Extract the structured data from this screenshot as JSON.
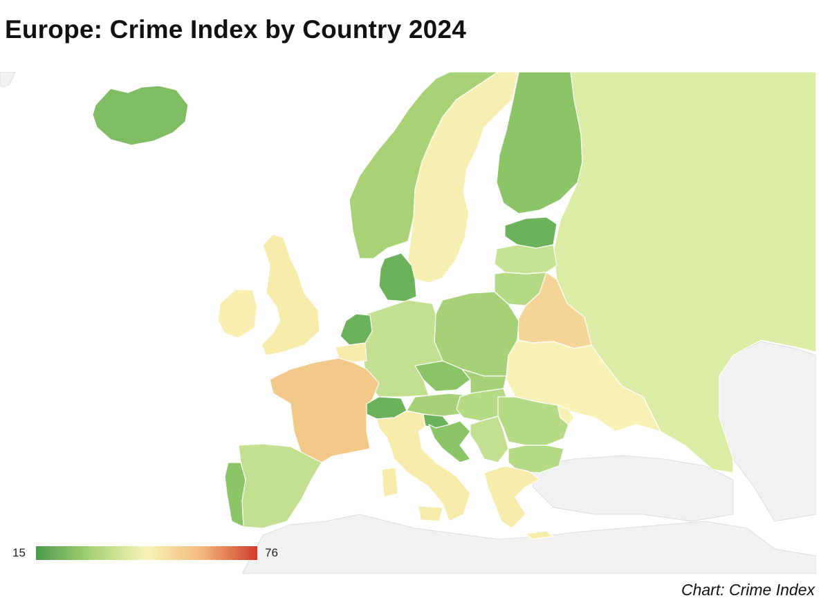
{
  "title": "Europe: Crime Index by Country 2024",
  "source": "Chart: Crime Index",
  "legend": {
    "min": "15",
    "max": "76",
    "stops": [
      "#4b9b48",
      "#a8d275",
      "#f8f4b8",
      "#f2b97a",
      "#d13a2c"
    ]
  },
  "colors": {
    "no_data": "#f1f1f1",
    "water": "#ffffff"
  },
  "map_data": {
    "type": "choropleth",
    "region": "Europe",
    "value_range": [
      15,
      76
    ],
    "regions": [
      {
        "name": "Iceland",
        "color": "#7fbc62"
      },
      {
        "name": "Norway",
        "color": "#a8d275"
      },
      {
        "name": "Sweden",
        "color": "#f8f0b2"
      },
      {
        "name": "Finland",
        "color": "#8cc468"
      },
      {
        "name": "Russia",
        "color": "#dcecA4"
      },
      {
        "name": "Estonia",
        "color": "#6cb25a"
      },
      {
        "name": "Latvia",
        "color": "#c6e293"
      },
      {
        "name": "Lithuania",
        "color": "#b5da85"
      },
      {
        "name": "Belarus",
        "color": "#f4d597"
      },
      {
        "name": "Ukraine",
        "color": "#f8f2b6"
      },
      {
        "name": "Poland",
        "color": "#a6d176"
      },
      {
        "name": "Germany",
        "color": "#c3e091"
      },
      {
        "name": "Denmark",
        "color": "#6cb25a"
      },
      {
        "name": "Netherlands",
        "color": "#6cb25a"
      },
      {
        "name": "Belgium",
        "color": "#f8ecac"
      },
      {
        "name": "France",
        "color": "#f3c98a"
      },
      {
        "name": "United Kingdom",
        "color": "#f8ecac"
      },
      {
        "name": "Ireland",
        "color": "#f8efb0"
      },
      {
        "name": "Spain",
        "color": "#c3e091"
      },
      {
        "name": "Portugal",
        "color": "#8cc468"
      },
      {
        "name": "Italy",
        "color": "#f8ecac"
      },
      {
        "name": "Switzerland",
        "color": "#6cb25a"
      },
      {
        "name": "Austria",
        "color": "#a6d176"
      },
      {
        "name": "Czechia",
        "color": "#8cc468"
      },
      {
        "name": "Slovakia",
        "color": "#a6d176"
      },
      {
        "name": "Hungary",
        "color": "#b5da85"
      },
      {
        "name": "Slovenia",
        "color": "#6cb25a"
      },
      {
        "name": "Croatia",
        "color": "#8cc468"
      },
      {
        "name": "Romania",
        "color": "#b5da85"
      },
      {
        "name": "Moldova",
        "color": "#f8f2b6"
      },
      {
        "name": "Bulgaria",
        "color": "#b5da85"
      },
      {
        "name": "Serbia",
        "color": "#c3e091"
      },
      {
        "name": "Greece",
        "color": "#f8ecac"
      },
      {
        "name": "Turkey",
        "color": "#f1f1f1"
      }
    ]
  }
}
